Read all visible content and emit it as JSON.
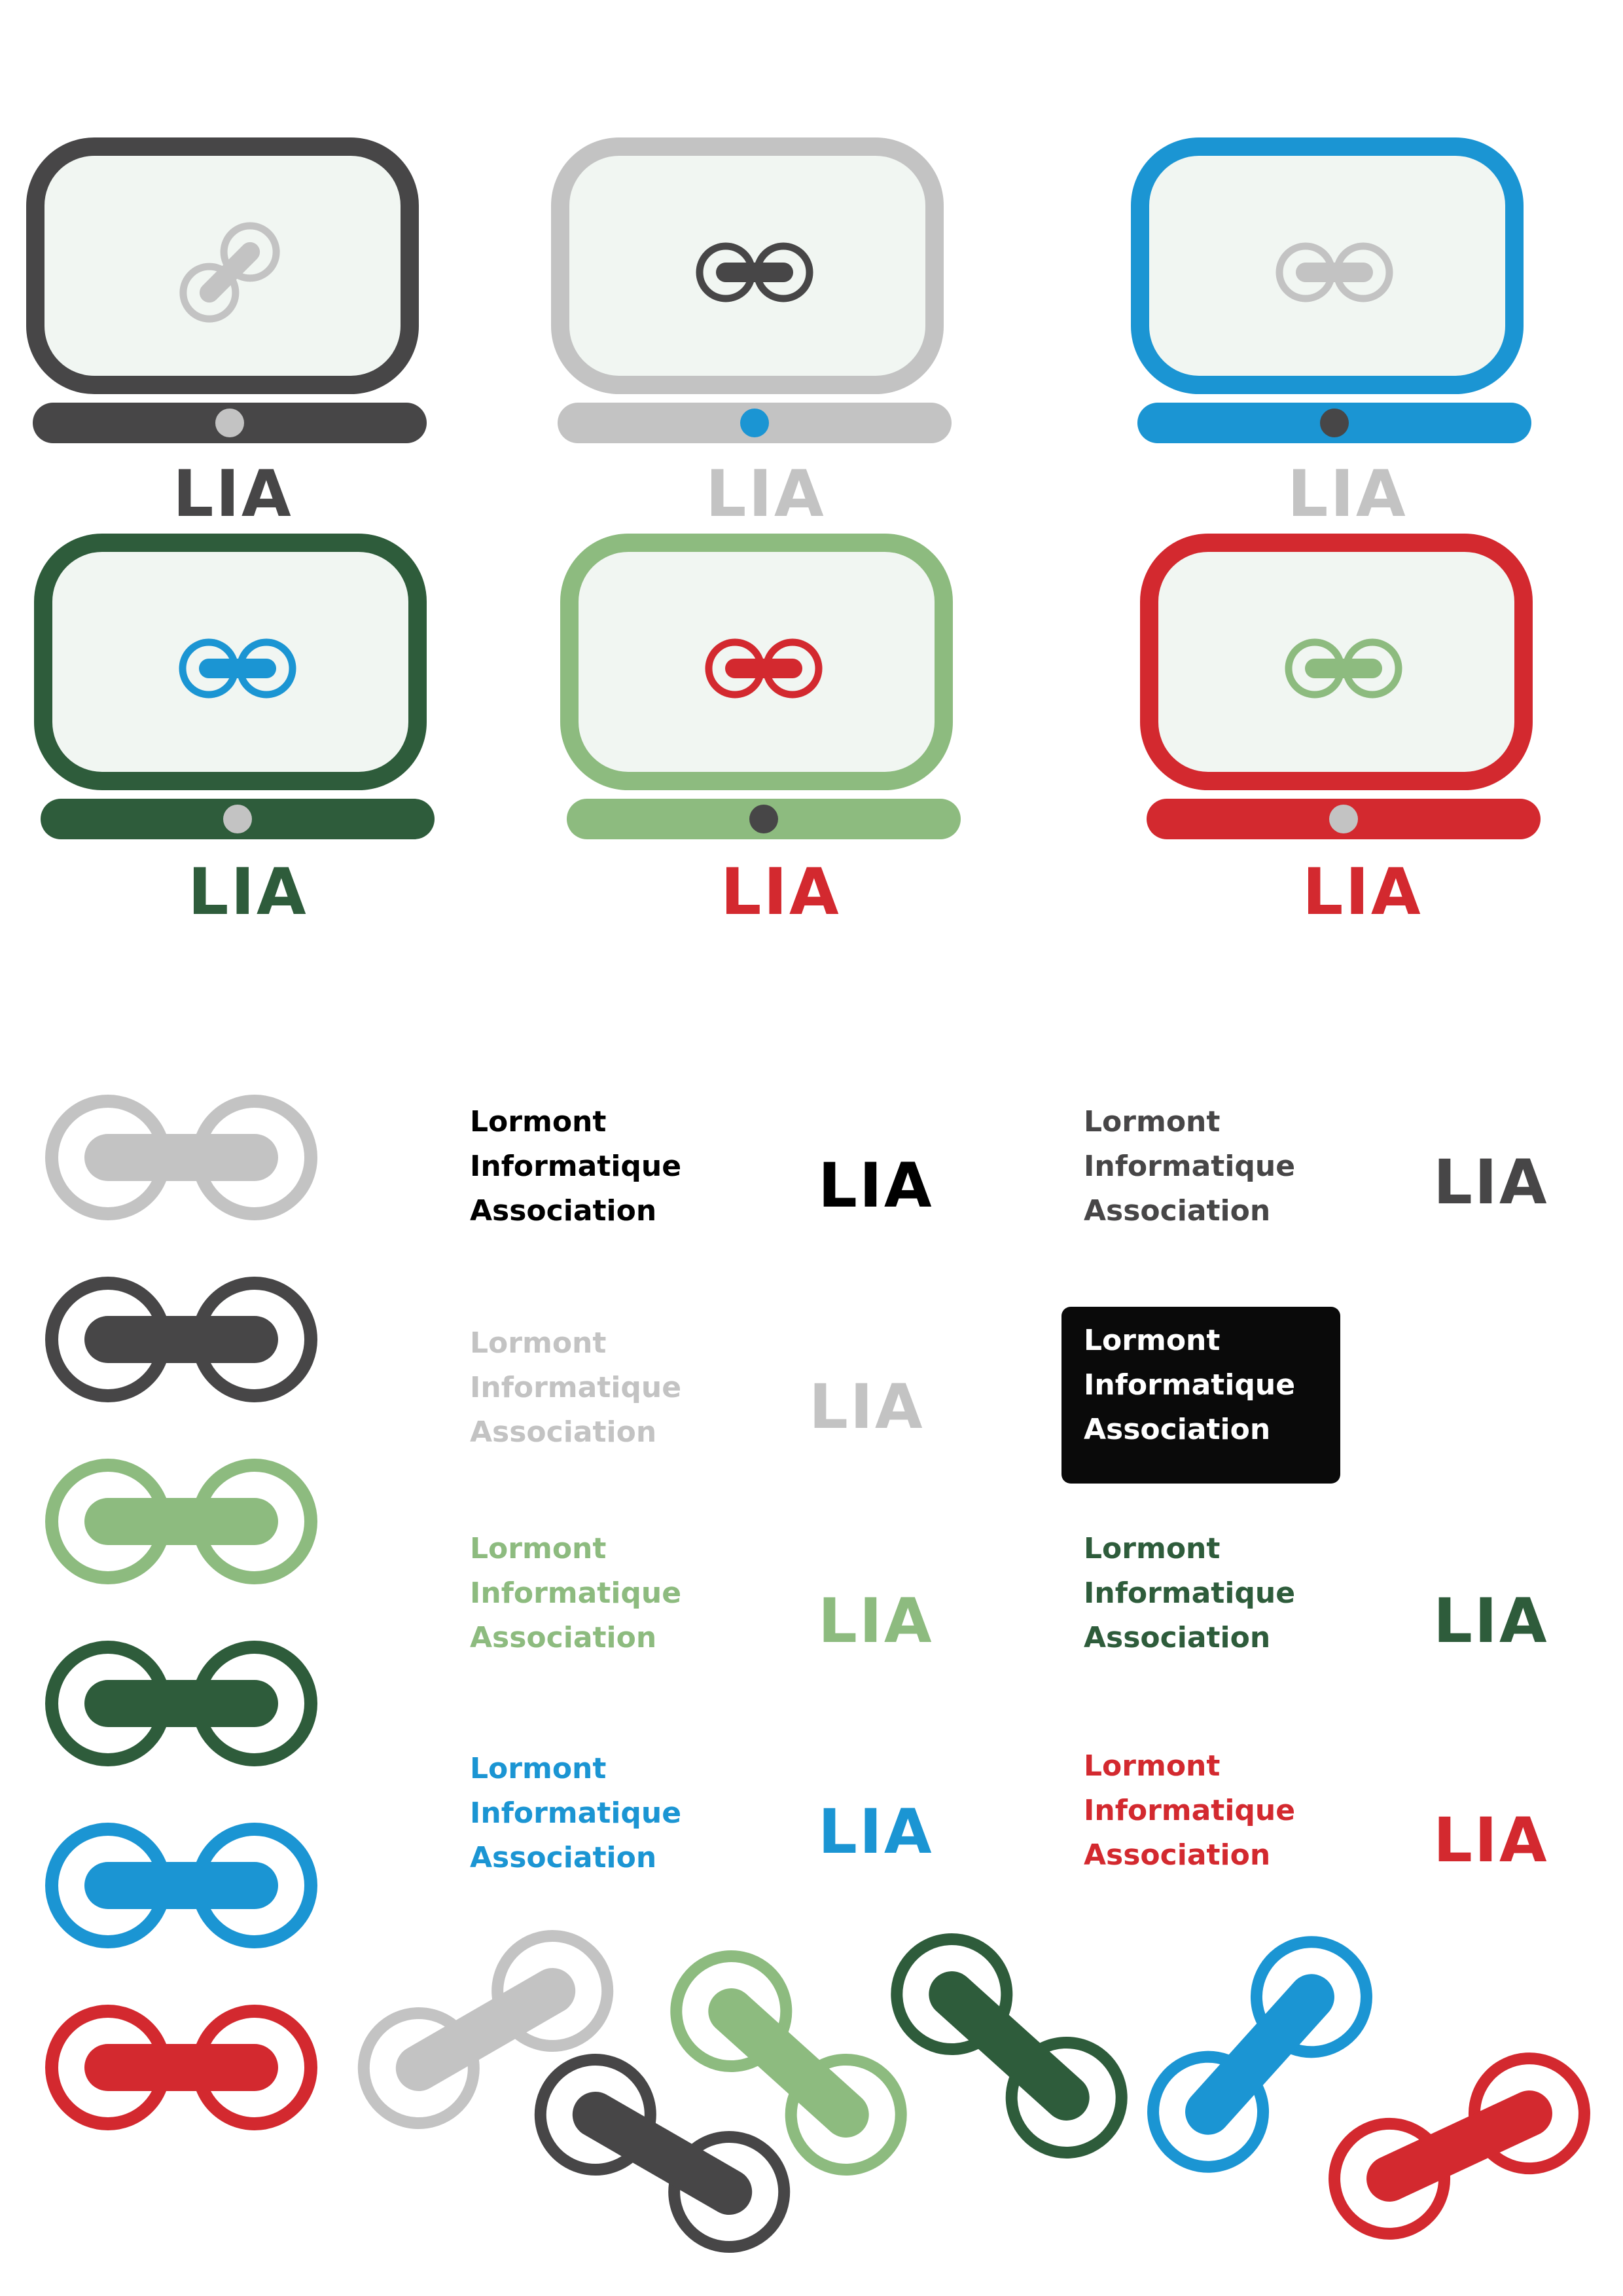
{
  "colors": {
    "charcoal": "#474647",
    "gray": "#c3c3c3",
    "blue": "#1b95d3",
    "dark_green": "#2e5c3b",
    "light_green": "#8dbb7f",
    "red": "#d3292f",
    "screen": "#f1f6f2",
    "black": "#000000"
  },
  "laptops": [
    {
      "label": "LIA",
      "frame": "charcoal",
      "icon": "gray",
      "dot": "gray",
      "icon_orientation": "diagonal"
    },
    {
      "label": "LIA",
      "frame": "gray",
      "icon": "charcoal",
      "dot": "blue",
      "icon_orientation": "horizontal"
    },
    {
      "label": "LIA",
      "frame": "blue",
      "icon": "gray",
      "dot": "charcoal",
      "icon_orientation": "horizontal"
    },
    {
      "label": "LIA",
      "frame": "dark_green",
      "icon": "blue",
      "dot": "gray",
      "icon_orientation": "horizontal"
    },
    {
      "label": "LIA",
      "frame": "light_green",
      "icon": "red",
      "dot": "charcoal",
      "icon_orientation": "horizontal"
    },
    {
      "label": "LIA",
      "frame": "red",
      "icon": "light_green",
      "dot": "gray",
      "icon_orientation": "horizontal"
    }
  ],
  "chain_icons": [
    "gray",
    "charcoal",
    "light_green",
    "dark_green",
    "blue",
    "red"
  ],
  "wordmarks": [
    {
      "lines": [
        "Lormont",
        "Informatique",
        "Association"
      ],
      "color": "black",
      "lia": "LIA"
    },
    {
      "lines": [
        "Lormont",
        "Informatique",
        "Association"
      ],
      "color": "charcoal",
      "lia": "LIA"
    },
    {
      "lines": [
        "Lormont",
        "Informatique",
        "Association"
      ],
      "color": "gray",
      "lia": "LIA"
    },
    {
      "lines": [
        "Lormont",
        "Informatique",
        "Association"
      ],
      "color": "white_on_black"
    },
    {
      "lines": [
        "Lormont",
        "Informatique",
        "Association"
      ],
      "color": "light_green",
      "lia": "LIA"
    },
    {
      "lines": [
        "Lormont",
        "Informatique",
        "Association"
      ],
      "color": "dark_green",
      "lia": "LIA"
    },
    {
      "lines": [
        "Lormont",
        "Informatique",
        "Association"
      ],
      "color": "blue",
      "lia": "LIA"
    },
    {
      "lines": [
        "Lormont",
        "Informatique",
        "Association"
      ],
      "color": "red",
      "lia": "LIA"
    }
  ],
  "scattered_chains": [
    {
      "color": "gray",
      "orientation": "diagonal-up"
    },
    {
      "color": "charcoal",
      "orientation": "diagonal-down"
    },
    {
      "color": "light_green",
      "orientation": "diagonal-down"
    },
    {
      "color": "dark_green",
      "orientation": "diagonal-down"
    },
    {
      "color": "blue",
      "orientation": "diagonal-up"
    },
    {
      "color": "red",
      "orientation": "diagonal-up"
    }
  ]
}
